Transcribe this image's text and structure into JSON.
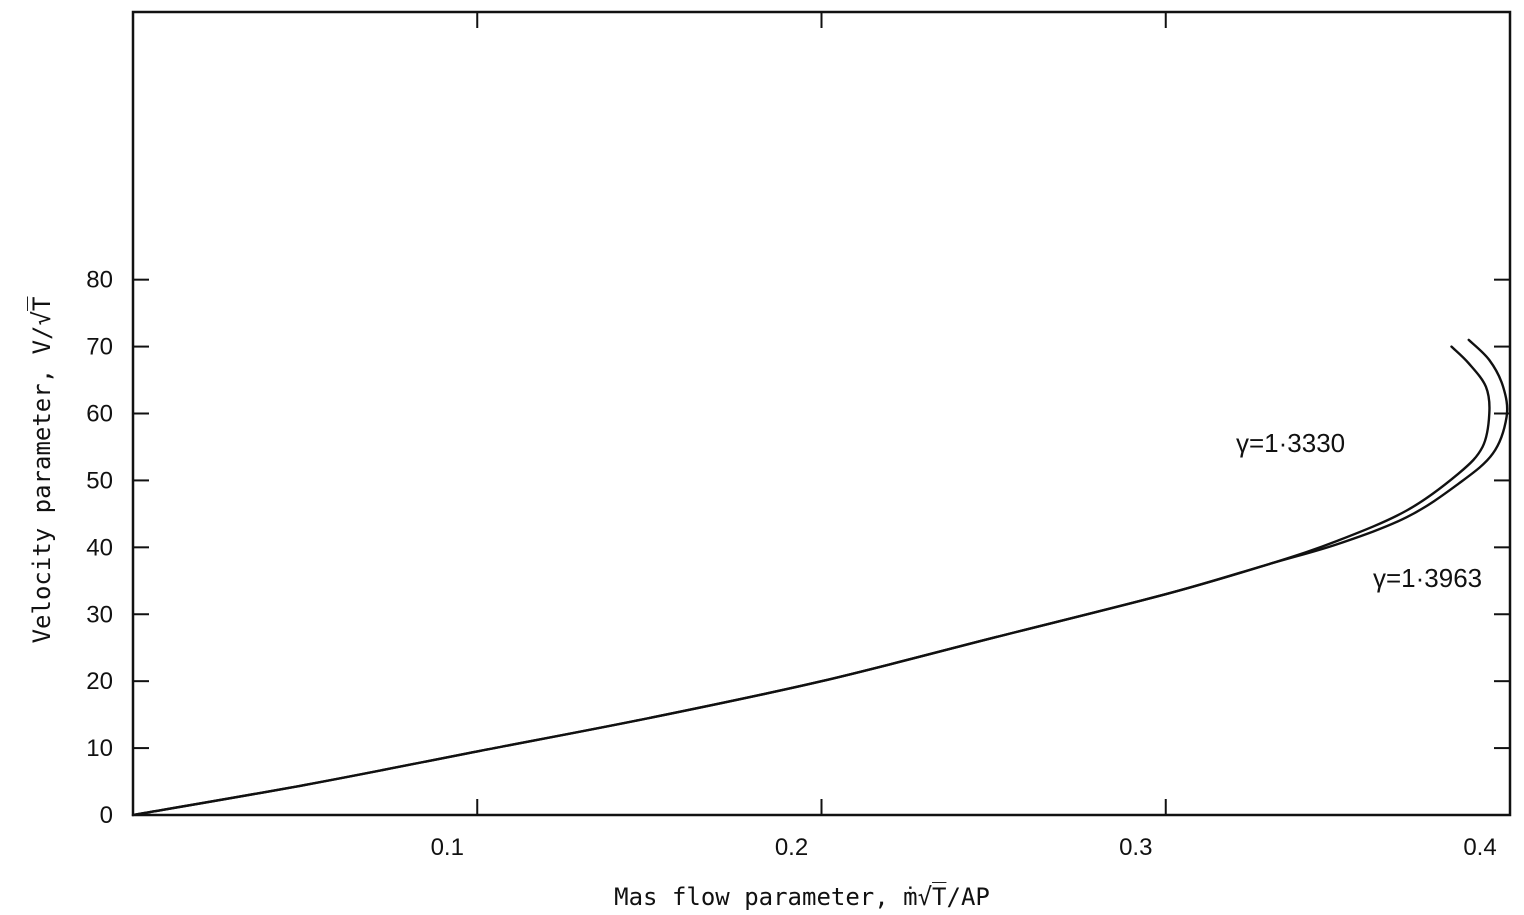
{
  "chart_data": {
    "type": "line",
    "title": "",
    "xlabel": "Mas flow parameter, ṁ√T̅/AP",
    "ylabel": "Velocity parameter, V/√T̅",
    "xlim": [
      0.0,
      0.4
    ],
    "ylim": [
      0,
      120
    ],
    "x_ticks": [
      0.1,
      0.2,
      0.3,
      0.4
    ],
    "x_tick_labels": [
      "0.1",
      "0.2",
      "0.3",
      "0.4"
    ],
    "y_ticks": [
      0,
      10,
      20,
      30,
      40,
      50,
      60,
      70,
      80
    ],
    "y_tick_labels": [
      "0",
      "10",
      "20",
      "30",
      "40",
      "50",
      "60",
      "70",
      "80"
    ],
    "grid": false,
    "annotations": [
      {
        "text": "γ=1·3330",
        "series": "γ=1·3330"
      },
      {
        "text": "γ=1·3963",
        "series": "γ=1·3963"
      }
    ],
    "series": [
      {
        "name": "γ=1·3330",
        "x": [
          0.0,
          0.05,
          0.1,
          0.15,
          0.2,
          0.25,
          0.3,
          0.33,
          0.35,
          0.37,
          0.385,
          0.392,
          0.394,
          0.393,
          0.388,
          0.383
        ],
        "y": [
          0,
          4.5,
          9.5,
          14.5,
          20,
          26.5,
          33,
          37.5,
          41,
          45.5,
          51,
          55,
          60,
          64,
          67.5,
          70
        ]
      },
      {
        "name": "γ=1·3963",
        "x": [
          0.0,
          0.05,
          0.1,
          0.15,
          0.2,
          0.25,
          0.3,
          0.33,
          0.35,
          0.37,
          0.385,
          0.395,
          0.399,
          0.398,
          0.394,
          0.388
        ],
        "y": [
          0,
          4.5,
          9.5,
          14.5,
          20,
          26.5,
          33,
          37.5,
          40.5,
          44.5,
          49.5,
          54,
          59.5,
          64,
          68,
          71
        ]
      }
    ]
  }
}
